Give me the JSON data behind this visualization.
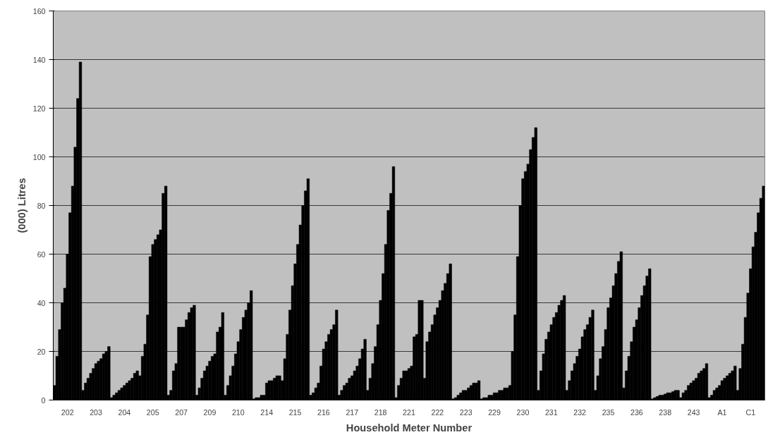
{
  "chart_data": {
    "type": "bar",
    "xlabel": "Household Meter Number",
    "ylabel": "(000) Litres",
    "categories": [
      null,
      null,
      null,
      null,
      null,
      "202",
      null,
      null,
      null,
      null,
      null,
      null,
      null,
      null,
      null,
      null,
      "203",
      null,
      null,
      null,
      null,
      null,
      null,
      null,
      null,
      null,
      null,
      "204",
      null,
      null,
      null,
      null,
      null,
      null,
      null,
      null,
      null,
      null,
      "205",
      null,
      null,
      null,
      null,
      null,
      null,
      null,
      null,
      null,
      null,
      "207",
      null,
      null,
      null,
      null,
      null,
      null,
      null,
      null,
      null,
      null,
      "209",
      null,
      null,
      null,
      null,
      null,
      null,
      null,
      null,
      null,
      null,
      "210",
      null,
      null,
      null,
      null,
      null,
      null,
      null,
      null,
      null,
      null,
      "214",
      null,
      null,
      null,
      null,
      null,
      null,
      null,
      null,
      null,
      null,
      "215",
      null,
      null,
      null,
      null,
      null,
      null,
      null,
      null,
      null,
      null,
      "216",
      null,
      null,
      null,
      null,
      null,
      null,
      null,
      null,
      null,
      null,
      "217",
      null,
      null,
      null,
      null,
      null,
      null,
      null,
      null,
      null,
      null,
      "218",
      null,
      null,
      null,
      null,
      null,
      null,
      null,
      null,
      null,
      null,
      "221",
      null,
      null,
      null,
      null,
      null,
      null,
      null,
      null,
      null,
      null,
      "222",
      null,
      null,
      null,
      null,
      null,
      null,
      null,
      null,
      null,
      null,
      "223",
      null,
      null,
      null,
      null,
      null,
      null,
      null,
      null,
      null,
      null,
      "229",
      null,
      null,
      null,
      null,
      null,
      null,
      null,
      null,
      null,
      null,
      "230",
      null,
      null,
      null,
      null,
      null,
      null,
      null,
      null,
      null,
      null,
      "231",
      null,
      null,
      null,
      null,
      null,
      null,
      null,
      null,
      null,
      null,
      "232",
      null,
      null,
      null,
      null,
      null,
      null,
      null,
      null,
      null,
      null,
      "235",
      null,
      null,
      null,
      null,
      null,
      null,
      null,
      null,
      null,
      null,
      "236",
      null,
      null,
      null,
      null,
      null,
      null,
      null,
      null,
      null,
      null,
      "238",
      null,
      null,
      null,
      null,
      null,
      null,
      null,
      null,
      null,
      null,
      "243",
      null,
      null,
      null,
      null,
      null,
      null,
      null,
      null,
      null,
      null,
      "A1",
      null,
      null,
      null,
      null,
      null,
      null,
      null,
      null,
      null,
      null,
      "C1",
      null,
      null,
      null,
      null,
      null
    ],
    "values": [
      6,
      18,
      29,
      40,
      46,
      60,
      77,
      88,
      104,
      124,
      139,
      4,
      7,
      9,
      11,
      13,
      15,
      16,
      17,
      19,
      20,
      22,
      1,
      2,
      3,
      4,
      5,
      6,
      7,
      8,
      9,
      11,
      12,
      10,
      18,
      23,
      35,
      59,
      64,
      66,
      68,
      70,
      85,
      88,
      2,
      4,
      12,
      15,
      30,
      30,
      30,
      33,
      36,
      38,
      39,
      2,
      5,
      9,
      12,
      14,
      16,
      18,
      19,
      28,
      30,
      36,
      2,
      6,
      10,
      14,
      19,
      24,
      29,
      34,
      37,
      40,
      45,
      0.5,
      1,
      1,
      2,
      2,
      7,
      8,
      8,
      9,
      10,
      10,
      8,
      17,
      27,
      37,
      47,
      56,
      64,
      72,
      80,
      86,
      91,
      2,
      3,
      5,
      7,
      14,
      21,
      24,
      27,
      29,
      31,
      37,
      2,
      4,
      6,
      7,
      9,
      10,
      12,
      14,
      17,
      21,
      25,
      4,
      9,
      15,
      22,
      31,
      41,
      52,
      64,
      78,
      85,
      96,
      1,
      6,
      9,
      12,
      12,
      13,
      14,
      26,
      27,
      41,
      41,
      9,
      24,
      28,
      31,
      35,
      38,
      41,
      45,
      48,
      52,
      56,
      0.5,
      1,
      2,
      3,
      4,
      4,
      5,
      6,
      7,
      7,
      8,
      0.5,
      1,
      1,
      2,
      2,
      3,
      3,
      4,
      4,
      5,
      5,
      6,
      20,
      35,
      59,
      80,
      91,
      94,
      97,
      103,
      108,
      112,
      4,
      12,
      19,
      25,
      28,
      31,
      34,
      36,
      39,
      41,
      43,
      4,
      8,
      12,
      15,
      18,
      21,
      26,
      29,
      31,
      34,
      37,
      4,
      10,
      17,
      22,
      29,
      38,
      42,
      47,
      52,
      57,
      61,
      5,
      12,
      18,
      24,
      30,
      33,
      38,
      43,
      47,
      51,
      54,
      0.5,
      1,
      1.5,
      2,
      2,
      2.5,
      3,
      3,
      3.5,
      4,
      4,
      1,
      3,
      4,
      6,
      7,
      8,
      9,
      11,
      12,
      13,
      15,
      1,
      2,
      4,
      5,
      6,
      8,
      9,
      10,
      11,
      12,
      14,
      4,
      13,
      23,
      34,
      44,
      54,
      63,
      69,
      77,
      83,
      88
    ],
    "color": "#000000",
    "ylim": [
      0,
      160
    ],
    "yticks": [
      0,
      20,
      40,
      60,
      80,
      100,
      120,
      140,
      160
    ],
    "grid": "y"
  }
}
